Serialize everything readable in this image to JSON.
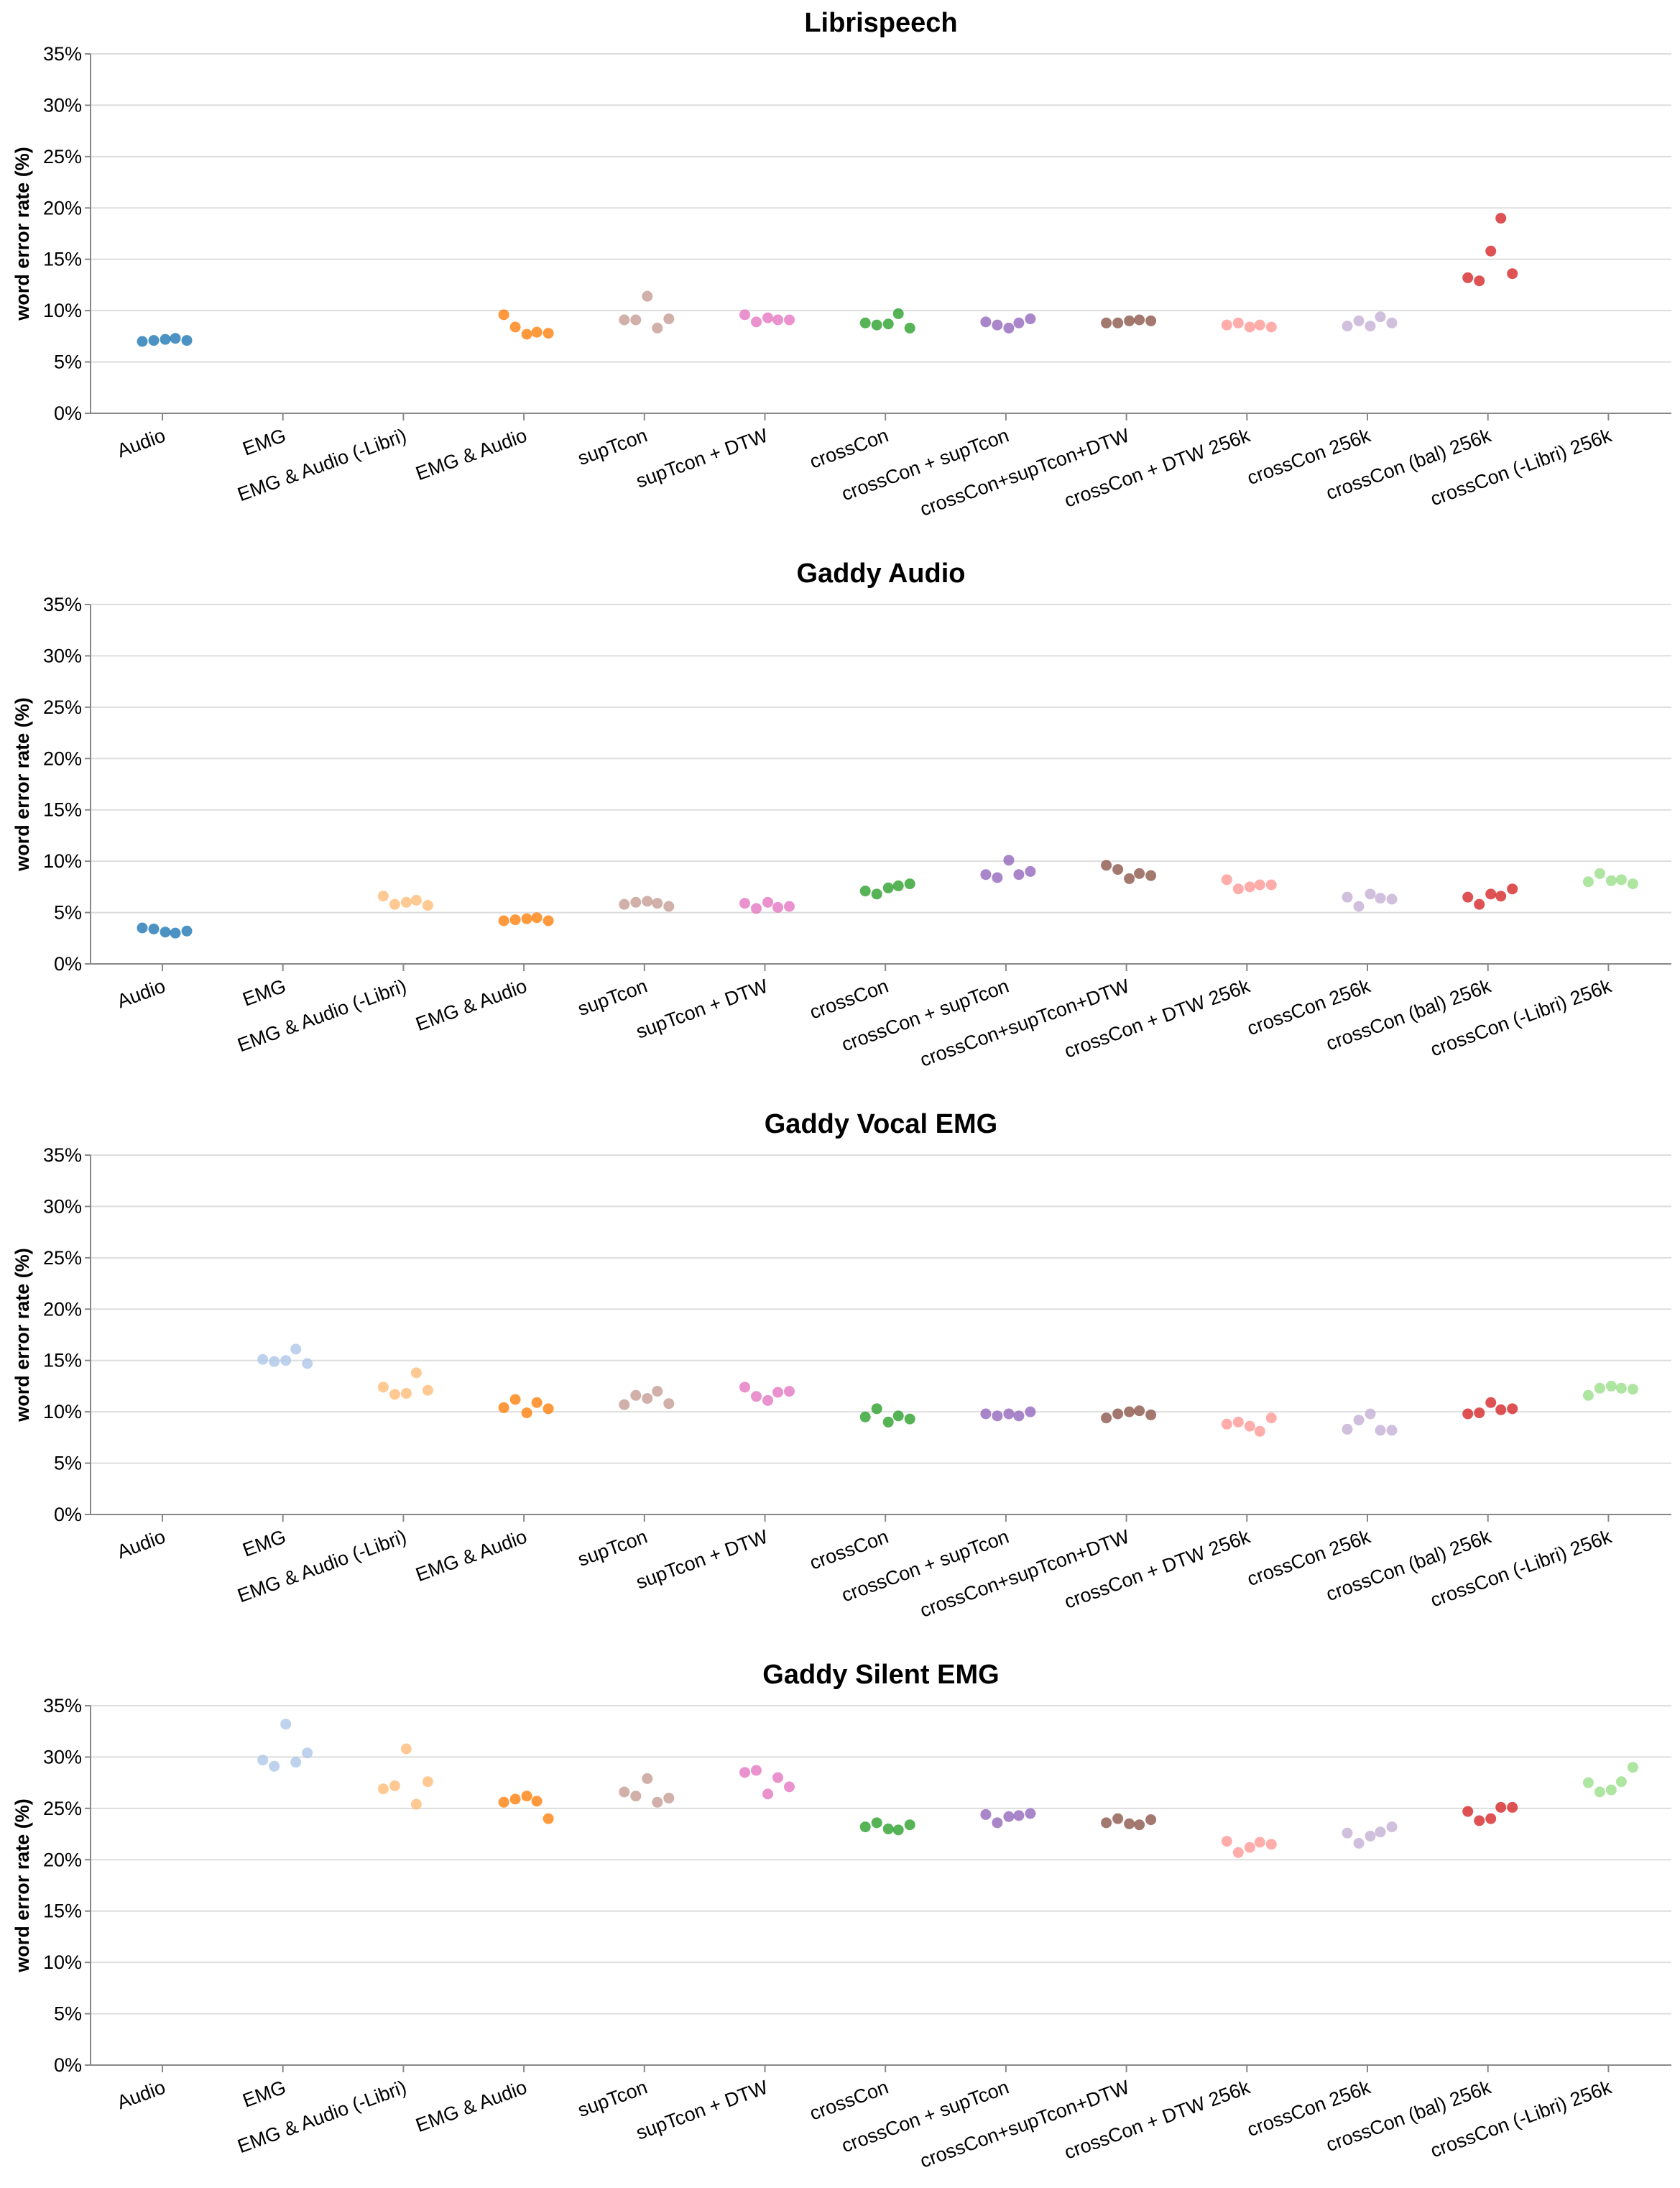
{
  "chart_data": [
    {
      "type": "scatter",
      "title": "Librispeech",
      "ylabel": "word error rate (%)",
      "xlabel": "",
      "ylim": [
        0,
        35
      ],
      "yticks": [
        0,
        5,
        10,
        15,
        20,
        25,
        30,
        35
      ],
      "ytick_labels": [
        "0%",
        "5%",
        "10%",
        "15%",
        "20%",
        "25%",
        "30%",
        "35%"
      ],
      "categories": [
        "Audio",
        "EMG",
        "EMG & Audio (-Libri)",
        "EMG & Audio",
        "supTcon",
        "supTcon + DTW",
        "crossCon",
        "crossCon + supTcon",
        "crossCon+supTcon+DTW",
        "crossCon + DTW 256k",
        "crossCon 256k",
        "crossCon (bal) 256k",
        "crossCon (-Libri) 256k"
      ],
      "series": [
        {
          "name": "Audio",
          "category": "Audio",
          "color": "#1f77b4",
          "values": [
            7.0,
            7.1,
            7.2,
            7.3,
            7.1
          ]
        },
        {
          "name": "EMG & Audio",
          "category": "EMG & Audio",
          "color": "#ff7f0e",
          "values": [
            9.6,
            8.4,
            7.7,
            7.9,
            7.8
          ]
        },
        {
          "name": "supTcon",
          "category": "supTcon",
          "color": "#c49c94",
          "values": [
            9.1,
            9.1,
            11.4,
            8.3,
            9.2
          ]
        },
        {
          "name": "supTcon + DTW",
          "category": "supTcon + DTW",
          "color": "#e377c2",
          "values": [
            9.6,
            8.9,
            9.3,
            9.1,
            9.1
          ]
        },
        {
          "name": "crossCon",
          "category": "crossCon",
          "color": "#2ca02c",
          "values": [
            8.8,
            8.6,
            8.7,
            9.7,
            8.3
          ]
        },
        {
          "name": "crossCon + supTcon",
          "category": "crossCon + supTcon",
          "color": "#9467bd",
          "values": [
            8.9,
            8.6,
            8.3,
            8.8,
            9.2
          ]
        },
        {
          "name": "crossCon+supTcon+DTW",
          "category": "crossCon+supTcon+DTW",
          "color": "#8c564b",
          "values": [
            8.8,
            8.8,
            9.0,
            9.1,
            9.0
          ]
        },
        {
          "name": "crossCon + DTW 256k",
          "category": "crossCon + DTW 256k",
          "color": "#ff9896",
          "values": [
            8.6,
            8.8,
            8.4,
            8.6,
            8.4
          ]
        },
        {
          "name": "crossCon 256k",
          "category": "crossCon 256k",
          "color": "#c5b0d5",
          "values": [
            8.5,
            9.0,
            8.5,
            9.4,
            8.8
          ]
        },
        {
          "name": "crossCon (bal) 256k",
          "category": "crossCon (bal) 256k",
          "color": "#d62728",
          "values": [
            13.2,
            12.9,
            15.8,
            19.0,
            13.6
          ]
        }
      ]
    },
    {
      "type": "scatter",
      "title": "Gaddy Audio",
      "ylabel": "word error rate (%)",
      "xlabel": "",
      "ylim": [
        0,
        35
      ],
      "yticks": [
        0,
        5,
        10,
        15,
        20,
        25,
        30,
        35
      ],
      "ytick_labels": [
        "0%",
        "5%",
        "10%",
        "15%",
        "20%",
        "25%",
        "30%",
        "35%"
      ],
      "categories": [
        "Audio",
        "EMG",
        "EMG & Audio (-Libri)",
        "EMG & Audio",
        "supTcon",
        "supTcon + DTW",
        "crossCon",
        "crossCon + supTcon",
        "crossCon+supTcon+DTW",
        "crossCon + DTW 256k",
        "crossCon 256k",
        "crossCon (bal) 256k",
        "crossCon (-Libri) 256k"
      ],
      "series": [
        {
          "name": "Audio",
          "category": "Audio",
          "color": "#1f77b4",
          "values": [
            3.5,
            3.4,
            3.1,
            3.0,
            3.2
          ]
        },
        {
          "name": "EMG & Audio (-Libri)",
          "category": "EMG & Audio (-Libri)",
          "color": "#ffbb78",
          "values": [
            6.6,
            5.8,
            6.0,
            6.2,
            5.7
          ]
        },
        {
          "name": "EMG & Audio",
          "category": "EMG & Audio",
          "color": "#ff7f0e",
          "values": [
            4.2,
            4.3,
            4.4,
            4.5,
            4.2
          ]
        },
        {
          "name": "supTcon",
          "category": "supTcon",
          "color": "#c49c94",
          "values": [
            5.8,
            6.0,
            6.1,
            5.9,
            5.6
          ]
        },
        {
          "name": "supTcon + DTW",
          "category": "supTcon + DTW",
          "color": "#e377c2",
          "values": [
            5.9,
            5.4,
            6.0,
            5.5,
            5.6
          ]
        },
        {
          "name": "crossCon",
          "category": "crossCon",
          "color": "#2ca02c",
          "values": [
            7.1,
            6.8,
            7.4,
            7.6,
            7.8
          ]
        },
        {
          "name": "crossCon + supTcon",
          "category": "crossCon + supTcon",
          "color": "#9467bd",
          "values": [
            8.7,
            8.4,
            10.1,
            8.7,
            9.0
          ]
        },
        {
          "name": "crossCon+supTcon+DTW",
          "category": "crossCon+supTcon+DTW",
          "color": "#8c564b",
          "values": [
            9.6,
            9.2,
            8.3,
            8.8,
            8.6
          ]
        },
        {
          "name": "crossCon + DTW 256k",
          "category": "crossCon + DTW 256k",
          "color": "#ff9896",
          "values": [
            8.2,
            7.3,
            7.5,
            7.7,
            7.7
          ]
        },
        {
          "name": "crossCon 256k",
          "category": "crossCon 256k",
          "color": "#c5b0d5",
          "values": [
            6.5,
            5.6,
            6.8,
            6.4,
            6.3
          ]
        },
        {
          "name": "crossCon (bal) 256k",
          "category": "crossCon (bal) 256k",
          "color": "#d62728",
          "values": [
            6.5,
            5.8,
            6.8,
            6.6,
            7.3
          ]
        },
        {
          "name": "crossCon (-Libri) 256k",
          "category": "crossCon (-Libri) 256k",
          "color": "#98df8a",
          "values": [
            8.0,
            8.8,
            8.1,
            8.2,
            7.8
          ]
        }
      ]
    },
    {
      "type": "scatter",
      "title": "Gaddy Vocal EMG",
      "ylabel": "word error rate (%)",
      "xlabel": "",
      "ylim": [
        0,
        35
      ],
      "yticks": [
        0,
        5,
        10,
        15,
        20,
        25,
        30,
        35
      ],
      "ytick_labels": [
        "0%",
        "5%",
        "10%",
        "15%",
        "20%",
        "25%",
        "30%",
        "35%"
      ],
      "categories": [
        "Audio",
        "EMG",
        "EMG & Audio (-Libri)",
        "EMG & Audio",
        "supTcon",
        "supTcon + DTW",
        "crossCon",
        "crossCon + supTcon",
        "crossCon+supTcon+DTW",
        "crossCon + DTW 256k",
        "crossCon 256k",
        "crossCon (bal) 256k",
        "crossCon (-Libri) 256k"
      ],
      "series": [
        {
          "name": "EMG",
          "category": "EMG",
          "color": "#aec7e8",
          "values": [
            15.1,
            14.9,
            15.0,
            16.1,
            14.7
          ]
        },
        {
          "name": "EMG & Audio (-Libri)",
          "category": "EMG & Audio (-Libri)",
          "color": "#ffbb78",
          "values": [
            12.4,
            11.7,
            11.8,
            13.8,
            12.1
          ]
        },
        {
          "name": "EMG & Audio",
          "category": "EMG & Audio",
          "color": "#ff7f0e",
          "values": [
            10.4,
            11.2,
            9.9,
            10.9,
            10.3
          ]
        },
        {
          "name": "supTcon",
          "category": "supTcon",
          "color": "#c49c94",
          "values": [
            10.7,
            11.6,
            11.3,
            12.0,
            10.8
          ]
        },
        {
          "name": "supTcon + DTW",
          "category": "supTcon + DTW",
          "color": "#e377c2",
          "values": [
            12.4,
            11.5,
            11.1,
            11.9,
            12.0
          ]
        },
        {
          "name": "crossCon",
          "category": "crossCon",
          "color": "#2ca02c",
          "values": [
            9.5,
            10.3,
            9.0,
            9.6,
            9.3
          ]
        },
        {
          "name": "crossCon + supTcon",
          "category": "crossCon + supTcon",
          "color": "#9467bd",
          "values": [
            9.8,
            9.6,
            9.8,
            9.6,
            10.0
          ]
        },
        {
          "name": "crossCon+supTcon+DTW",
          "category": "crossCon+supTcon+DTW",
          "color": "#8c564b",
          "values": [
            9.4,
            9.8,
            10.0,
            10.1,
            9.7
          ]
        },
        {
          "name": "crossCon + DTW 256k",
          "category": "crossCon + DTW 256k",
          "color": "#ff9896",
          "values": [
            8.8,
            9.0,
            8.6,
            8.1,
            9.4
          ]
        },
        {
          "name": "crossCon 256k",
          "category": "crossCon 256k",
          "color": "#c5b0d5",
          "values": [
            8.3,
            9.2,
            9.8,
            8.2,
            8.2
          ]
        },
        {
          "name": "crossCon (bal) 256k",
          "category": "crossCon (bal) 256k",
          "color": "#d62728",
          "values": [
            9.8,
            9.9,
            10.9,
            10.2,
            10.3
          ]
        },
        {
          "name": "crossCon (-Libri) 256k",
          "category": "crossCon (-Libri) 256k",
          "color": "#98df8a",
          "values": [
            11.6,
            12.3,
            12.5,
            12.3,
            12.2
          ]
        }
      ]
    },
    {
      "type": "scatter",
      "title": "Gaddy Silent EMG",
      "ylabel": "word error rate (%)",
      "xlabel": "",
      "ylim": [
        0,
        35
      ],
      "yticks": [
        0,
        5,
        10,
        15,
        20,
        25,
        30,
        35
      ],
      "ytick_labels": [
        "0%",
        "5%",
        "10%",
        "15%",
        "20%",
        "25%",
        "30%",
        "35%"
      ],
      "categories": [
        "Audio",
        "EMG",
        "EMG & Audio (-Libri)",
        "EMG & Audio",
        "supTcon",
        "supTcon + DTW",
        "crossCon",
        "crossCon + supTcon",
        "crossCon+supTcon+DTW",
        "crossCon + DTW 256k",
        "crossCon 256k",
        "crossCon (bal) 256k",
        "crossCon (-Libri) 256k"
      ],
      "series": [
        {
          "name": "EMG",
          "category": "EMG",
          "color": "#aec7e8",
          "values": [
            29.7,
            29.1,
            33.2,
            29.5,
            30.4
          ]
        },
        {
          "name": "EMG & Audio (-Libri)",
          "category": "EMG & Audio (-Libri)",
          "color": "#ffbb78",
          "values": [
            26.9,
            27.2,
            30.8,
            25.4,
            27.6
          ]
        },
        {
          "name": "EMG & Audio",
          "category": "EMG & Audio",
          "color": "#ff7f0e",
          "values": [
            25.6,
            25.9,
            26.2,
            25.7,
            24.0
          ]
        },
        {
          "name": "supTcon",
          "category": "supTcon",
          "color": "#c49c94",
          "values": [
            26.6,
            26.2,
            27.9,
            25.6,
            26.0
          ]
        },
        {
          "name": "supTcon + DTW",
          "category": "supTcon + DTW",
          "color": "#e377c2",
          "values": [
            28.5,
            28.7,
            26.4,
            28.0,
            27.1
          ]
        },
        {
          "name": "crossCon",
          "category": "crossCon",
          "color": "#2ca02c",
          "values": [
            23.2,
            23.6,
            23.0,
            22.9,
            23.4
          ]
        },
        {
          "name": "crossCon + supTcon",
          "category": "crossCon + supTcon",
          "color": "#9467bd",
          "values": [
            24.4,
            23.6,
            24.2,
            24.3,
            24.5
          ]
        },
        {
          "name": "crossCon+supTcon+DTW",
          "category": "crossCon+supTcon+DTW",
          "color": "#8c564b",
          "values": [
            23.6,
            24.0,
            23.5,
            23.4,
            23.9
          ]
        },
        {
          "name": "crossCon + DTW 256k",
          "category": "crossCon + DTW 256k",
          "color": "#ff9896",
          "values": [
            21.8,
            20.7,
            21.2,
            21.7,
            21.5
          ]
        },
        {
          "name": "crossCon 256k",
          "category": "crossCon 256k",
          "color": "#c5b0d5",
          "values": [
            22.6,
            21.6,
            22.3,
            22.7,
            23.2
          ]
        },
        {
          "name": "crossCon (bal) 256k",
          "category": "crossCon (bal) 256k",
          "color": "#d62728",
          "values": [
            24.7,
            23.8,
            24.0,
            25.1,
            25.1
          ]
        },
        {
          "name": "crossCon (-Libri) 256k",
          "category": "crossCon (-Libri) 256k",
          "color": "#98df8a",
          "values": [
            27.5,
            26.6,
            26.8,
            27.6,
            29.0
          ]
        }
      ]
    }
  ]
}
